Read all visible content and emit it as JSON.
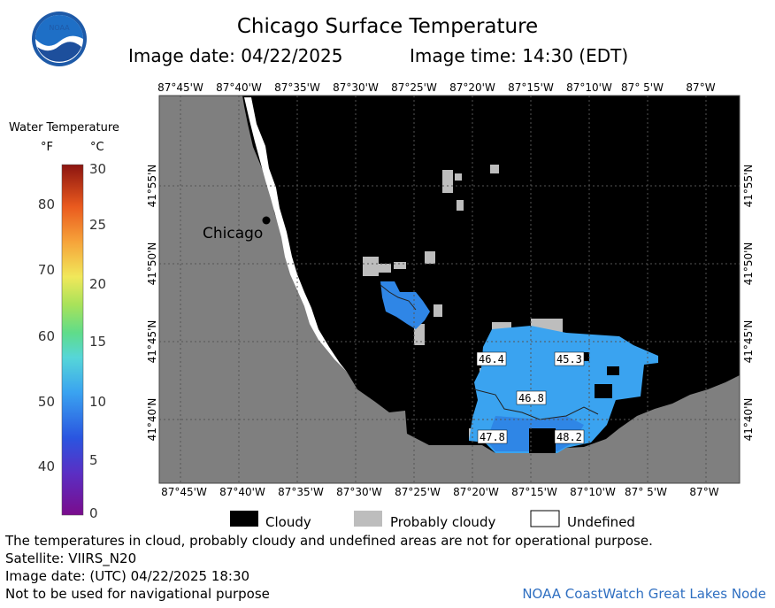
{
  "header": {
    "title": "Chicago Surface Temperature",
    "image_date": "Image date: 04/22/2025",
    "image_time": "Image time: 14:30 (EDT)"
  },
  "logo": {
    "text": "NOAA"
  },
  "legend": {
    "title": "Water Temperature",
    "unit_f": "°F",
    "unit_c": "°C",
    "f_ticks": [
      "80",
      "70",
      "60",
      "50",
      "40"
    ],
    "c_ticks": [
      "30",
      "25",
      "20",
      "15",
      "10",
      "5",
      "0"
    ]
  },
  "map": {
    "top_lon_labels": [
      "87°45'W",
      "87°40'W",
      "87°35'W",
      "87°30'W",
      "87°25'W",
      "87°20'W",
      "87°15'W",
      "87°10'W",
      "87° 5'W",
      "87°W"
    ],
    "bottom_lon_labels": [
      "87°45'W",
      "87°40'W",
      "87°35'W",
      "87°30'W",
      "87°25'W",
      "87°20'W",
      "87°15'W",
      "87°10'W",
      "87° 5'W",
      "87°W"
    ],
    "lat_labels": [
      "41°55'N",
      "41°50'N",
      "41°45'N",
      "41°40'N"
    ],
    "city_label": "Chicago",
    "temperatures": [
      "46.4",
      "45.3",
      "46.8",
      "47.8",
      "48.2"
    ],
    "colors": {
      "land": "#7f7f7f",
      "cloudy": "#000000",
      "probably_cloudy": "#bdbdbd",
      "water_cold": "#2f86e6",
      "water_mid": "#3aa3f0"
    }
  },
  "key": {
    "cloudy": "Cloudy",
    "probably_cloudy": "Probably cloudy",
    "undefined": "Undefined"
  },
  "footer": {
    "disclaimer": "The temperatures in cloud, probably cloudy and undefined areas are not for operational purpose.",
    "satellite": "Satellite: VIIRS_N20",
    "utc_date": "Image date: (UTC) 04/22/2025  18:30",
    "nav_note": "Not to be used for navigational purpose",
    "credit": "NOAA CoastWatch Great Lakes Node"
  }
}
